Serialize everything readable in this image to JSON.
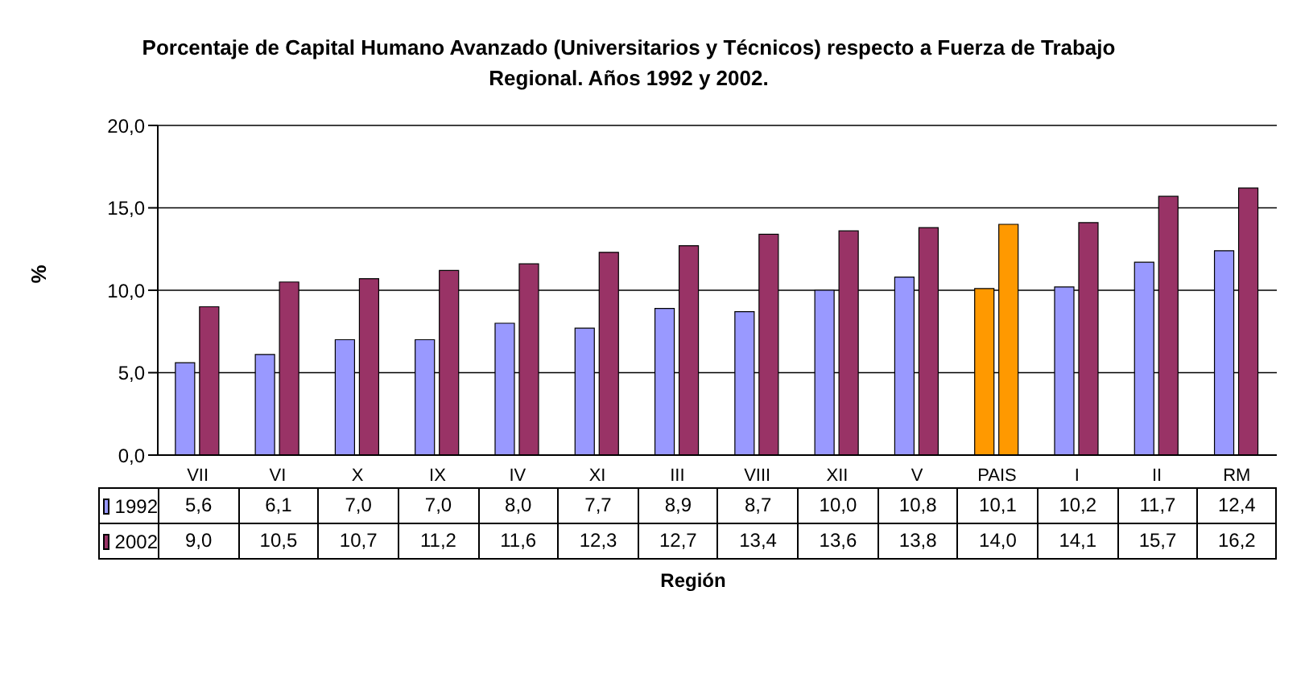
{
  "chart_data": {
    "type": "bar",
    "title": "Porcentaje de Capital Humano Avanzado (Universitarios y Técnicos) respecto a Fuerza de Trabajo Regional. Años 1992 y 2002.",
    "xlabel": "Región",
    "ylabel": "%",
    "categories": [
      "VII",
      "VI",
      "X",
      "IX",
      "IV",
      "XI",
      "III",
      "VIII",
      "XII",
      "V",
      "PAIS",
      "I",
      "II",
      "RM"
    ],
    "series": [
      {
        "name": "1992",
        "color": "#9999ff",
        "colors": [
          "#9999ff",
          "#9999ff",
          "#9999ff",
          "#9999ff",
          "#9999ff",
          "#9999ff",
          "#9999ff",
          "#9999ff",
          "#9999ff",
          "#9999ff",
          "#ff9900",
          "#9999ff",
          "#9999ff",
          "#9999ff"
        ],
        "values": [
          5.6,
          6.1,
          7.0,
          7.0,
          8.0,
          7.7,
          8.9,
          8.7,
          10.0,
          10.8,
          10.1,
          10.2,
          11.7,
          12.4
        ],
        "value_labels": [
          "5,6",
          "6,1",
          "7,0",
          "7,0",
          "8,0",
          "7,7",
          "8,9",
          "8,7",
          "10,0",
          "10,8",
          "10,1",
          "10,2",
          "11,7",
          "12,4"
        ]
      },
      {
        "name": "2002",
        "color": "#993366",
        "colors": [
          "#993366",
          "#993366",
          "#993366",
          "#993366",
          "#993366",
          "#993366",
          "#993366",
          "#993366",
          "#993366",
          "#993366",
          "#ff9900",
          "#993366",
          "#993366",
          "#993366"
        ],
        "values": [
          9.0,
          10.5,
          10.7,
          11.2,
          11.6,
          12.3,
          12.7,
          13.4,
          13.6,
          13.8,
          14.0,
          14.1,
          15.7,
          16.2
        ],
        "value_labels": [
          "9,0",
          "10,5",
          "10,7",
          "11,2",
          "11,6",
          "12,3",
          "12,7",
          "13,4",
          "13,6",
          "13,8",
          "14,0",
          "14,1",
          "15,7",
          "16,2"
        ]
      }
    ],
    "ylim": [
      0,
      20
    ],
    "yticks": [
      {
        "value": 0,
        "label": "0,0"
      },
      {
        "value": 5,
        "label": "5,0"
      },
      {
        "value": 10,
        "label": "10,0"
      },
      {
        "value": 15,
        "label": "15,0"
      },
      {
        "value": 20,
        "label": "20,0"
      }
    ],
    "grid": "y",
    "legend": "bottom"
  }
}
